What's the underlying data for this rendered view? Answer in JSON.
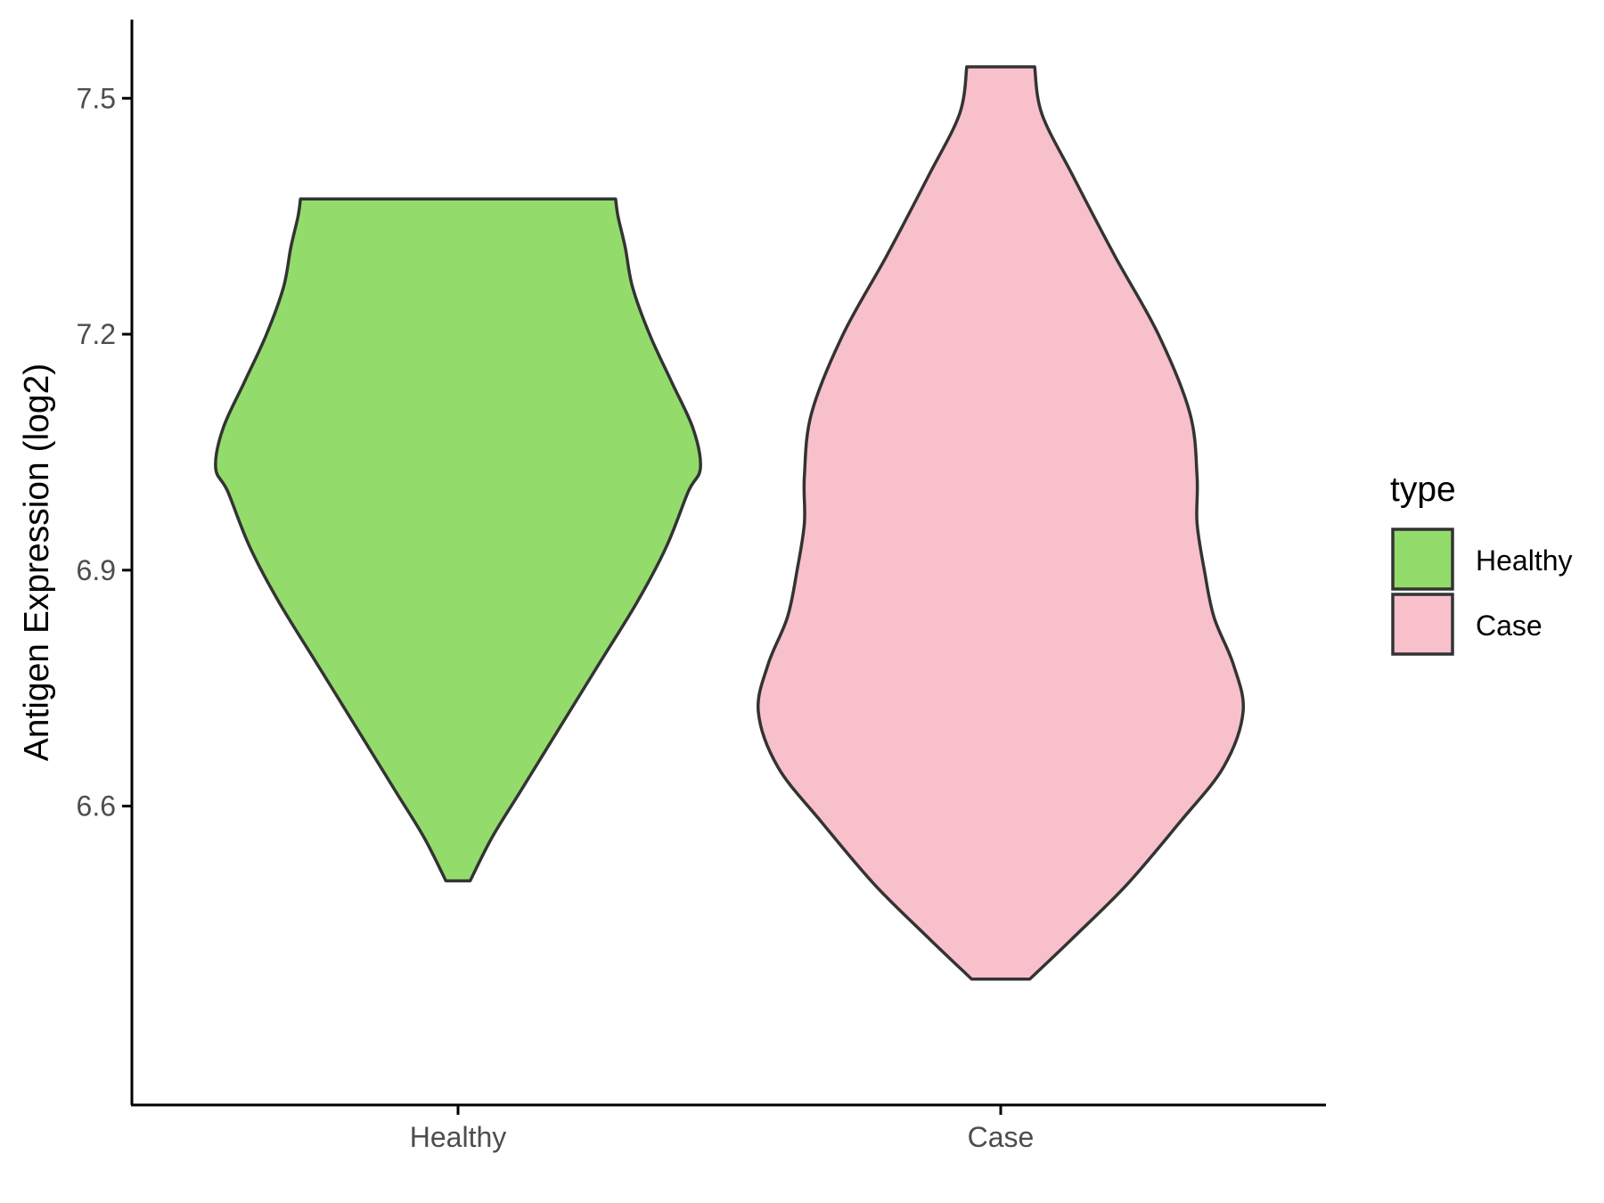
{
  "chart_data": {
    "type": "violin",
    "title": "",
    "xlabel": "",
    "ylabel": "Antigen Expression (log2)",
    "categories": [
      "Healthy",
      "Case"
    ],
    "ylim": [
      6.22,
      7.6
    ],
    "yticks": [
      6.6,
      6.9,
      7.2,
      7.5
    ],
    "ytick_labels": [
      "6.6",
      "6.9",
      "7.2",
      "7.5"
    ],
    "grid": false,
    "legend": {
      "title": "type",
      "position": "right",
      "entries": [
        "Healthy",
        "Case"
      ]
    },
    "colors": {
      "Healthy": "#93dc6c",
      "Case": "#f7c0cb",
      "outline": "#333333"
    },
    "series": [
      {
        "name": "Healthy",
        "min": 6.505,
        "max": 7.372,
        "density_profile": [
          [
            6.505,
            0.05
          ],
          [
            6.56,
            0.14
          ],
          [
            6.62,
            0.26
          ],
          [
            6.7,
            0.42
          ],
          [
            6.78,
            0.58
          ],
          [
            6.86,
            0.74
          ],
          [
            6.93,
            0.86
          ],
          [
            7.0,
            0.95
          ],
          [
            7.03,
            1.0
          ],
          [
            7.08,
            0.97
          ],
          [
            7.14,
            0.88
          ],
          [
            7.2,
            0.79
          ],
          [
            7.26,
            0.72
          ],
          [
            7.31,
            0.69
          ],
          [
            7.35,
            0.66
          ],
          [
            7.372,
            0.65
          ]
        ]
      },
      {
        "name": "Case",
        "min": 6.38,
        "max": 7.54,
        "density_profile": [
          [
            6.38,
            0.12
          ],
          [
            6.43,
            0.29
          ],
          [
            6.5,
            0.52
          ],
          [
            6.58,
            0.74
          ],
          [
            6.65,
            0.92
          ],
          [
            6.72,
            1.0
          ],
          [
            6.78,
            0.96
          ],
          [
            6.84,
            0.88
          ],
          [
            6.9,
            0.84
          ],
          [
            6.96,
            0.81
          ],
          [
            7.02,
            0.81
          ],
          [
            7.1,
            0.78
          ],
          [
            7.2,
            0.65
          ],
          [
            7.3,
            0.47
          ],
          [
            7.4,
            0.3
          ],
          [
            7.48,
            0.17
          ],
          [
            7.54,
            0.14
          ]
        ]
      }
    ]
  }
}
